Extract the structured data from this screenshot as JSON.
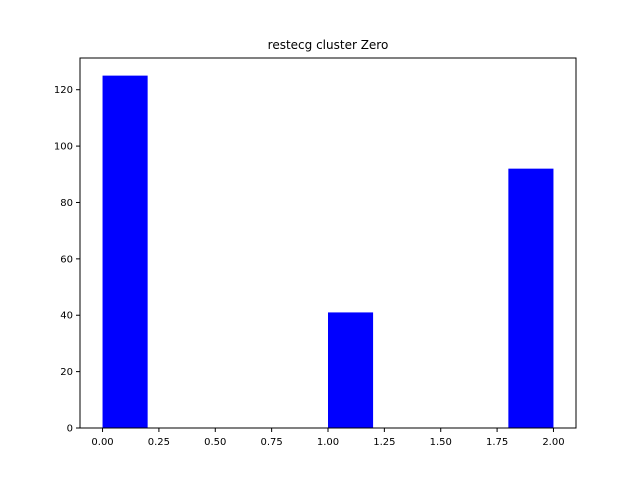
{
  "chart_data": {
    "type": "bar",
    "title": "restecg cluster Zero",
    "xlabel": "",
    "ylabel": "",
    "bars": [
      {
        "x0": 0.0,
        "x1": 0.2,
        "value": 125
      },
      {
        "x0": 0.2,
        "x1": 0.4,
        "value": 0
      },
      {
        "x0": 0.4,
        "x1": 0.6,
        "value": 0
      },
      {
        "x0": 0.6,
        "x1": 0.8,
        "value": 0
      },
      {
        "x0": 0.8,
        "x1": 1.0,
        "value": 0
      },
      {
        "x0": 1.0,
        "x1": 1.2,
        "value": 41
      },
      {
        "x0": 1.2,
        "x1": 1.4,
        "value": 0
      },
      {
        "x0": 1.4,
        "x1": 1.6,
        "value": 0
      },
      {
        "x0": 1.6,
        "x1": 1.8,
        "value": 0
      },
      {
        "x0": 1.8,
        "x1": 2.0,
        "value": 92
      }
    ],
    "xlim": [
      -0.1,
      2.1
    ],
    "ylim": [
      0,
      131.25
    ],
    "xticks": [
      "0.00",
      "0.25",
      "0.50",
      "0.75",
      "1.00",
      "1.25",
      "1.50",
      "1.75",
      "2.00"
    ],
    "yticks": [
      "0",
      "20",
      "40",
      "60",
      "80",
      "100",
      "120"
    ],
    "bar_color": "#0000ff",
    "grid": false,
    "legend": "none"
  }
}
